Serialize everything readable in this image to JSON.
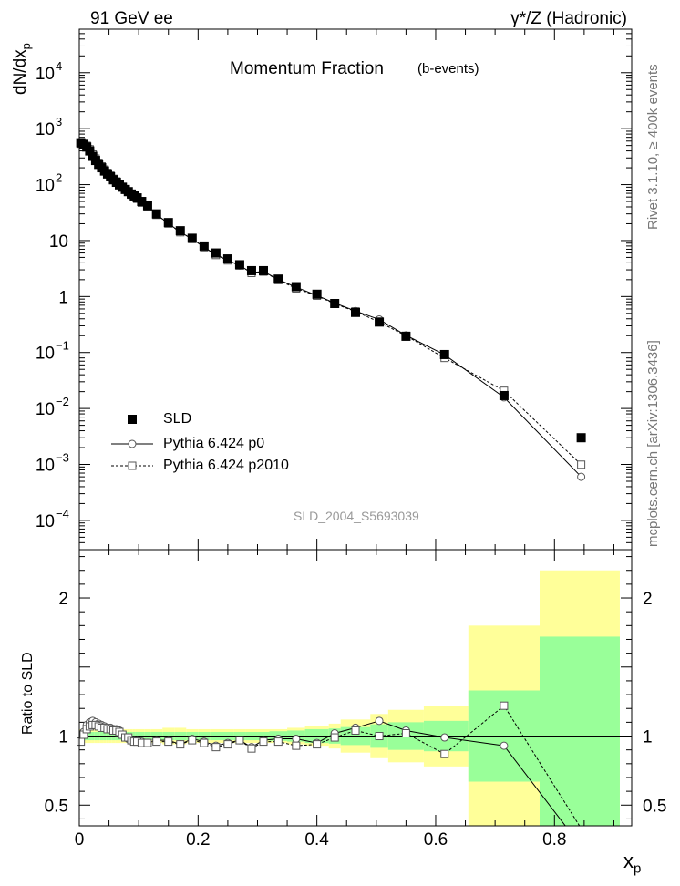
{
  "header": {
    "left": "91 GeV ee",
    "right": "γ*/Z (Hadronic)"
  },
  "side": {
    "rivet": "Rivet 3.1.10, ≥ 400k events",
    "site": "mcplots.cern.ch [arXiv:1306.3436]"
  },
  "chart_data": {
    "type": "scatter",
    "title": "Momentum Fraction",
    "subtitle": "(b-events)",
    "reference_label": "SLD_2004_S5693039",
    "xlabel": "x",
    "xlabel_sub": "p",
    "ylabel": "dN/dx",
    "ylabel_sub": "p",
    "ratio_ylabel": "Ratio to SLD",
    "xlim": [
      0,
      0.93
    ],
    "ylim": [
      3e-05,
      60000
    ],
    "yscale": "log",
    "ratio_ylim": [
      0.35,
      2.35
    ],
    "x_ticks": [
      "0",
      "0.2",
      "0.4",
      "0.6",
      "0.8"
    ],
    "x_tick_values": [
      0,
      0.2,
      0.4,
      0.6,
      0.8
    ],
    "y_ticks": [
      {
        "base": "10",
        "exp": "−4",
        "value": 0.0001
      },
      {
        "base": "10",
        "exp": "−3",
        "value": 0.001
      },
      {
        "base": "10",
        "exp": "−2",
        "value": 0.01
      },
      {
        "base": "10",
        "exp": "−1",
        "value": 0.1
      },
      {
        "base": "1",
        "exp": "",
        "value": 1
      },
      {
        "base": "10",
        "exp": "",
        "value": 10
      },
      {
        "base": "10",
        "exp": "2",
        "value": 100
      },
      {
        "base": "10",
        "exp": "3",
        "value": 1000
      },
      {
        "base": "10",
        "exp": "4",
        "value": 10000
      }
    ],
    "ratio_ticks": [
      "0.5",
      "1",
      "2"
    ],
    "ratio_tick_values": [
      0.5,
      1,
      2
    ],
    "legend": {
      "position": "bottom-left",
      "entries": [
        "SLD",
        "Pythia 6.424 p0",
        "Pythia 6.424 p2010"
      ]
    },
    "x": [
      0.0025,
      0.0075,
      0.0125,
      0.0175,
      0.0225,
      0.0275,
      0.0325,
      0.0375,
      0.0425,
      0.0475,
      0.0525,
      0.0575,
      0.0625,
      0.0675,
      0.0725,
      0.0775,
      0.0825,
      0.0875,
      0.0925,
      0.0975,
      0.105,
      0.115,
      0.13,
      0.15,
      0.17,
      0.19,
      0.21,
      0.23,
      0.25,
      0.27,
      0.29,
      0.31,
      0.335,
      0.365,
      0.4,
      0.43,
      0.465,
      0.505,
      0.55,
      0.615,
      0.715,
      0.845
    ],
    "bins": [
      0,
      0.005,
      0.01,
      0.015,
      0.02,
      0.025,
      0.03,
      0.035,
      0.04,
      0.045,
      0.05,
      0.055,
      0.06,
      0.065,
      0.07,
      0.075,
      0.08,
      0.085,
      0.09,
      0.095,
      0.1,
      0.11,
      0.12,
      0.14,
      0.16,
      0.18,
      0.2,
      0.22,
      0.24,
      0.26,
      0.28,
      0.3,
      0.32,
      0.35,
      0.38,
      0.42,
      0.44,
      0.49,
      0.52,
      0.58,
      0.655,
      0.775,
      0.91
    ],
    "series": [
      {
        "name": "SLD",
        "marker": "filled-square",
        "color": "#000000",
        "values": [
          560,
          525,
          470,
          400,
          320,
          270,
          230,
          200,
          175,
          155,
          138,
          122,
          110,
          99,
          90,
          82,
          75,
          68,
          63,
          58,
          50,
          42,
          30,
          21,
          15,
          11,
          8,
          6,
          4.7,
          3.7,
          2.9,
          2.9,
          2.05,
          1.5,
          1.1,
          0.75,
          0.52,
          0.35,
          0.195,
          0.092,
          0.017,
          0.003
        ]
      },
      {
        "name": "Pythia 6.424 p0",
        "marker": "open-circle",
        "line": "solid",
        "color": "#000000",
        "ratio": [
          0.97,
          1.03,
          1.08,
          1.1,
          1.11,
          1.1,
          1.09,
          1.08,
          1.07,
          1.06,
          1.06,
          1.05,
          1.05,
          1.04,
          1.01,
          0.99,
          0.98,
          0.97,
          0.96,
          0.97,
          0.96,
          0.95,
          0.97,
          0.97,
          0.94,
          0.98,
          0.96,
          0.93,
          0.95,
          0.97,
          0.92,
          0.97,
          0.98,
          0.98,
          0.95,
          1.02,
          1.06,
          1.11,
          1.04,
          0.99,
          0.93,
          0.2
        ]
      },
      {
        "name": "Pythia 6.424 p2010",
        "marker": "open-square",
        "line": "dashed",
        "color": "#000000",
        "ratio": [
          0.96,
          1.01,
          1.05,
          1.07,
          1.08,
          1.08,
          1.07,
          1.06,
          1.06,
          1.05,
          1.05,
          1.04,
          1.04,
          1.03,
          1.01,
          0.99,
          0.99,
          0.97,
          0.96,
          0.96,
          0.95,
          0.95,
          0.96,
          0.96,
          0.94,
          0.97,
          0.95,
          0.92,
          0.94,
          0.97,
          0.91,
          0.96,
          0.96,
          0.93,
          0.94,
          0.99,
          1.04,
          1.0,
          1.02,
          0.87,
          1.22,
          0.33
        ]
      }
    ],
    "uncertainty_bands": {
      "green_half_width": [
        0.03,
        0.03,
        0.03,
        0.03,
        0.03,
        0.03,
        0.03,
        0.03,
        0.03,
        0.03,
        0.03,
        0.03,
        0.03,
        0.03,
        0.03,
        0.03,
        0.03,
        0.03,
        0.03,
        0.03,
        0.03,
        0.03,
        0.03,
        0.03,
        0.03,
        0.03,
        0.03,
        0.03,
        0.03,
        0.03,
        0.03,
        0.03,
        0.035,
        0.04,
        0.05,
        0.055,
        0.065,
        0.085,
        0.1,
        0.11,
        0.33,
        0.72
      ],
      "yellow_half_width": [
        0.05,
        0.05,
        0.05,
        0.05,
        0.05,
        0.05,
        0.05,
        0.05,
        0.05,
        0.05,
        0.05,
        0.05,
        0.05,
        0.05,
        0.05,
        0.05,
        0.05,
        0.05,
        0.05,
        0.05,
        0.05,
        0.05,
        0.05,
        0.06,
        0.06,
        0.05,
        0.05,
        0.05,
        0.05,
        0.05,
        0.05,
        0.05,
        0.05,
        0.06,
        0.07,
        0.09,
        0.12,
        0.16,
        0.19,
        0.22,
        0.8,
        1.2
      ],
      "green_color": "#99ff99",
      "yellow_color": "#ffff99"
    }
  }
}
